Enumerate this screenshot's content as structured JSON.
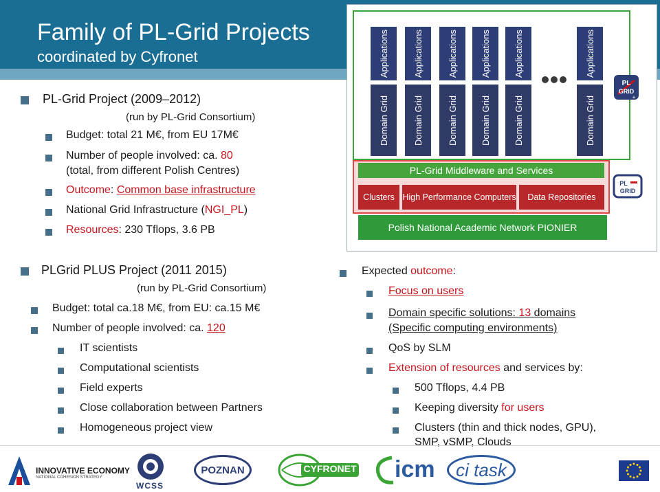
{
  "header": {
    "title": "Family of PL-Grid Projects",
    "subtitle": "coordinated by Cyfronet"
  },
  "plgrid": {
    "heading": "PL-Grid Project (2009–2012)",
    "runby": "(run by PL-Grid Consortium)",
    "budget": "Budget:  total 21 M€, from EU 17M€",
    "people_prefix": "Number of people involved: ca. ",
    "people_count": "80",
    "people_note": "(total, from different Polish Centres)",
    "outcome_label": "Outcome",
    "outcome_sep": ": ",
    "outcome_value": "Common base infrastructure",
    "ngi_prefix": "National Grid Infrastructure (",
    "ngi_value": "NGI_PL",
    "ngi_suffix": ")",
    "resources_label": "Resources",
    "resources_sep": ": ",
    "resources_value": "230 Tflops, 3.6 PB"
  },
  "plus": {
    "heading": "PLGrid PLUS Project (2011 2015)",
    "runby": "(run by PL-Grid Consortium)",
    "budget": "Budget:  total ca.18 M€, from EU: ca.15 M€",
    "people_prefix": "Number of people involved: ca. ",
    "people_count": "120",
    "items": [
      "IT scientists",
      "Computational scientists",
      "Field experts",
      "Close collaboration between Partners",
      "Homogeneous project view"
    ]
  },
  "expected": {
    "heading_prefix": "Expected ",
    "heading_red": "outcome",
    "heading_suffix": ":",
    "focus": "Focus on users",
    "domain_line1_a": "Domain specific solutions: ",
    "domain_line1_b": "13",
    "domain_line1_c": " domains",
    "domain_line2": "(Specific computing environments)",
    "qos": "QoS by SLM",
    "extension_red": "Extension of resources",
    "extension_rest": " and services by:",
    "sub1": "500 Tflops, 4.4 PB",
    "sub2_a": "Keeping diversity ",
    "sub2_b": "for users",
    "sub3_line1": "Clusters (thin and thick nodes, GPU),",
    "sub3_line2": "SMP, vSMP, Clouds"
  },
  "diagram": {
    "applications": "Applications",
    "domain_grid": "Domain Grid",
    "middleware": "PL-Grid Middleware and Services",
    "clusters": "Clusters",
    "hpc": "High Performance Computers",
    "data": "Data Repositories",
    "network": "Polish National Academic Network PIONIER",
    "logo_top": "PL GRID +",
    "logo_bottom": "PL GRID"
  },
  "footer": {
    "innovative": "INNOVATIVE ECONOMY",
    "innovative_sub": "NATIONAL COHESION STRATEGY",
    "wcss": "WCSS",
    "poznan": "POZNAN",
    "cyfronet": "CYFRONET",
    "icm": "icm",
    "citask": "ci task"
  },
  "colors": {
    "header": "#1b6e93",
    "accent_red": "#c8141e",
    "bullet": "#46708a",
    "green": "#46a43c",
    "navy": "#2c3e75"
  }
}
